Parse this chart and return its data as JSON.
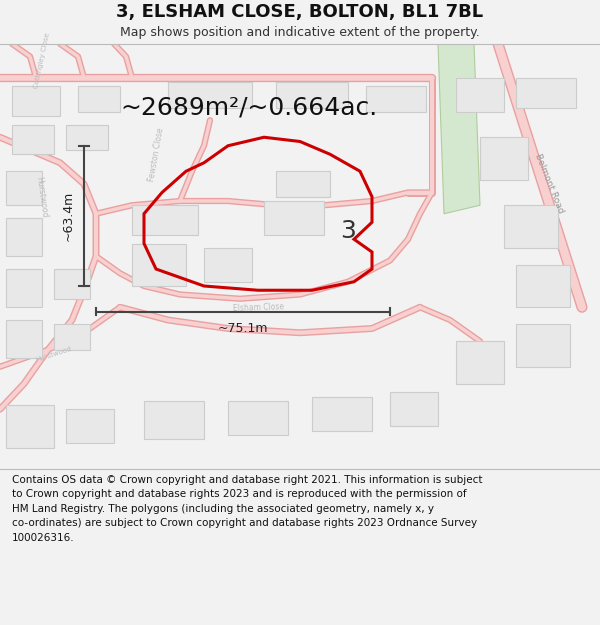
{
  "title": "3, ELSHAM CLOSE, BOLTON, BL1 7BL",
  "subtitle": "Map shows position and indicative extent of the property.",
  "area_label": "~2689m²/~0.664ac.",
  "width_label": "~75.1m",
  "height_label": "~63.4m",
  "number_label": "3",
  "footer_text": "Contains OS data © Crown copyright and database right 2021. This information is subject\nto Crown copyright and database rights 2023 and is reproduced with the permission of\nHM Land Registry. The polygons (including the associated geometry, namely x, y\nco-ordinates) are subject to Crown copyright and database rights 2023 Ordnance Survey\n100026316.",
  "bg_color": "#f2f2f2",
  "map_bg": "#ffffff",
  "road_fill": "#f9d0d0",
  "road_edge": "#e8a0a0",
  "building_fill": "#e8e8e8",
  "building_edge": "#cccccc",
  "green_fill": "#d4e8d0",
  "green_edge": "#b0cc9a",
  "highlight_color": "#cc0000",
  "dim_color": "#444444",
  "text_color": "#333333",
  "road_label_color": "#aaaaaa",
  "title_fontsize": 13,
  "subtitle_fontsize": 9,
  "footer_fontsize": 7.5,
  "area_fontsize": 18,
  "dim_fontsize": 9,
  "num_fontsize": 18
}
